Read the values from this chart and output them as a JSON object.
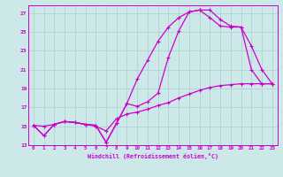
{
  "xlabel": "Windchill (Refroidissement éolien,°C)",
  "bg_color": "#cce8e8",
  "grid_color": "#aacfcf",
  "line_color": "#cc00cc",
  "xlim": [
    -0.5,
    23.5
  ],
  "ylim": [
    13,
    27.8
  ],
  "xticks": [
    0,
    1,
    2,
    3,
    4,
    5,
    6,
    7,
    8,
    9,
    10,
    11,
    12,
    13,
    14,
    15,
    16,
    17,
    18,
    19,
    20,
    21,
    22,
    23
  ],
  "yticks": [
    13,
    15,
    17,
    19,
    21,
    23,
    25,
    27
  ],
  "line1_x": [
    0,
    1,
    2,
    3,
    4,
    5,
    6,
    7,
    8,
    9,
    10,
    11,
    12,
    13,
    14,
    15,
    16,
    17,
    18,
    19,
    20,
    21,
    22,
    23
  ],
  "line1_y": [
    15.1,
    14.0,
    15.2,
    15.5,
    15.4,
    15.2,
    15.1,
    13.3,
    15.3,
    17.4,
    17.1,
    17.6,
    18.5,
    22.3,
    25.1,
    27.1,
    27.3,
    27.3,
    26.3,
    25.6,
    25.5,
    23.5,
    21.0,
    19.5
  ],
  "line2_x": [
    0,
    1,
    2,
    3,
    4,
    5,
    6,
    7,
    8,
    9,
    10,
    11,
    12,
    13,
    14,
    15,
    16,
    17,
    18,
    19,
    20,
    21,
    22,
    23
  ],
  "line2_y": [
    15.1,
    14.0,
    15.2,
    15.5,
    15.4,
    15.2,
    15.1,
    13.3,
    15.3,
    17.4,
    20.0,
    22.0,
    24.0,
    25.5,
    26.5,
    27.1,
    27.3,
    26.5,
    25.6,
    25.5,
    25.5,
    21.0,
    19.5,
    19.5
  ],
  "line3_x": [
    0,
    1,
    2,
    3,
    4,
    5,
    6,
    7,
    8,
    9,
    10,
    11,
    12,
    13,
    14,
    15,
    16,
    17,
    18,
    19,
    20,
    21,
    22,
    23
  ],
  "line3_y": [
    15.1,
    15.0,
    15.2,
    15.5,
    15.4,
    15.2,
    15.0,
    14.5,
    15.8,
    16.3,
    16.5,
    16.8,
    17.2,
    17.5,
    18.0,
    18.4,
    18.8,
    19.1,
    19.3,
    19.4,
    19.5,
    19.5,
    19.5,
    19.5
  ]
}
